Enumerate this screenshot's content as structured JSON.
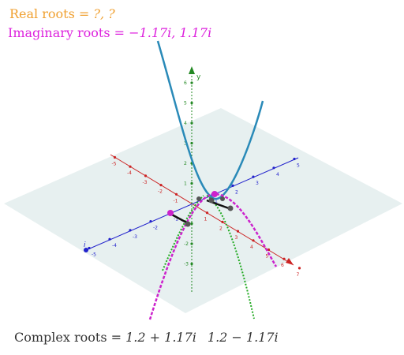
{
  "labels": {
    "real_roots": {
      "prefix": "Real roots = ",
      "value": "?, ?"
    },
    "imaginary_roots": {
      "prefix": "Imaginary roots = ",
      "value": "−1.17i, 1.17i"
    },
    "complex_roots": {
      "prefix": "Complex roots = ",
      "root1": "1.2 + 1.17i",
      "root2": "1.2 − 1.17i"
    }
  },
  "axes": {
    "y_axis_label": "y",
    "i_axis_label": "i",
    "y_ticks": [
      "6",
      "5",
      "4",
      "3",
      "2",
      "1",
      "-1",
      "-2",
      "-3"
    ],
    "x_ticks_pos": [
      "1",
      "2",
      "3",
      "4",
      "5",
      "6",
      "7"
    ],
    "x_ticks_neg": [
      "-1",
      "-2",
      "-3",
      "-4",
      "-5"
    ],
    "i_ticks_pos": [
      "1",
      "2",
      "3",
      "4",
      "5"
    ],
    "i_ticks_neg": [
      "-1",
      "-2",
      "-3",
      "-4",
      "-5"
    ]
  },
  "colors": {
    "real": "#f0a030",
    "imaginary": "#dd22dd",
    "complex_text": "#333333",
    "parabola": "#2a8ab8",
    "x_axis": "#cc2222",
    "i_axis": "#2222cc",
    "y_axis": "#228822",
    "plane": "#e4eeee",
    "imag_parabola": "#cc22cc",
    "green_dotted": "#22aa22"
  }
}
